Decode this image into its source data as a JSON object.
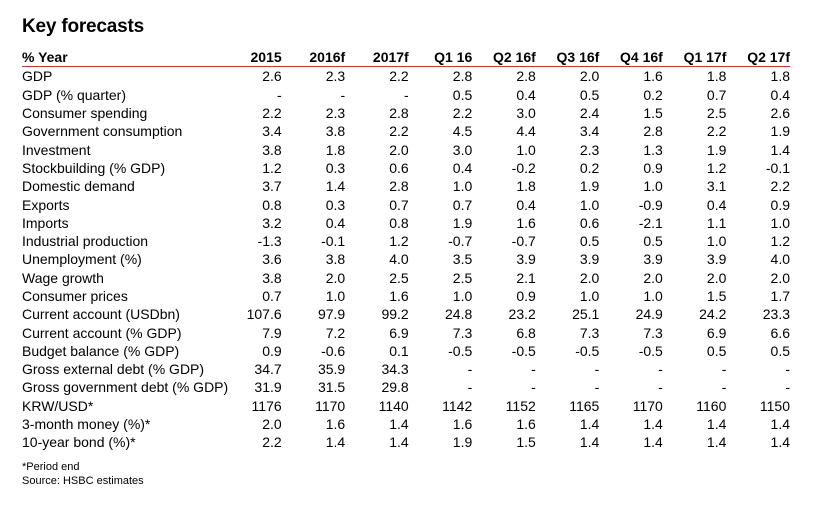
{
  "title": "Key forecasts",
  "header": [
    "% Year",
    "2015",
    "2016f",
    "2017f",
    "Q1 16",
    "Q2 16f",
    "Q3 16f",
    "Q4 16f",
    "Q1 17f",
    "Q2 17f"
  ],
  "rows": [
    [
      "GDP",
      "2.6",
      "2.3",
      "2.2",
      "2.8",
      "2.8",
      "2.0",
      "1.6",
      "1.8",
      "1.8"
    ],
    [
      "GDP (% quarter)",
      "-",
      "-",
      "-",
      "0.5",
      "0.4",
      "0.5",
      "0.2",
      "0.7",
      "0.4"
    ],
    [
      "Consumer spending",
      "2.2",
      "2.3",
      "2.8",
      "2.2",
      "3.0",
      "2.4",
      "1.5",
      "2.5",
      "2.6"
    ],
    [
      "Government consumption",
      "3.4",
      "3.8",
      "2.2",
      "4.5",
      "4.4",
      "3.4",
      "2.8",
      "2.2",
      "1.9"
    ],
    [
      "Investment",
      "3.8",
      "1.8",
      "2.0",
      "3.0",
      "1.0",
      "2.3",
      "1.3",
      "1.9",
      "1.4"
    ],
    [
      "Stockbuilding (% GDP)",
      "1.2",
      "0.3",
      "0.6",
      "0.4",
      "-0.2",
      "0.2",
      "0.9",
      "1.2",
      "-0.1"
    ],
    [
      "Domestic demand",
      "3.7",
      "1.4",
      "2.8",
      "1.0",
      "1.8",
      "1.9",
      "1.0",
      "3.1",
      "2.2"
    ],
    [
      "Exports",
      "0.8",
      "0.3",
      "0.7",
      "0.7",
      "0.4",
      "1.0",
      "-0.9",
      "0.4",
      "0.9"
    ],
    [
      "Imports",
      "3.2",
      "0.4",
      "0.8",
      "1.9",
      "1.6",
      "0.6",
      "-2.1",
      "1.1",
      "1.0"
    ],
    [
      "Industrial production",
      "-1.3",
      "-0.1",
      "1.2",
      "-0.7",
      "-0.7",
      "0.5",
      "0.5",
      "1.0",
      "1.2"
    ],
    [
      "Unemployment (%)",
      "3.6",
      "3.8",
      "4.0",
      "3.5",
      "3.9",
      "3.9",
      "3.9",
      "3.9",
      "4.0"
    ],
    [
      "Wage growth",
      "3.8",
      "2.0",
      "2.5",
      "2.5",
      "2.1",
      "2.0",
      "2.0",
      "2.0",
      "2.0"
    ],
    [
      "Consumer prices",
      "0.7",
      "1.0",
      "1.6",
      "1.0",
      "0.9",
      "1.0",
      "1.0",
      "1.5",
      "1.7"
    ],
    [
      "Current account (USDbn)",
      "107.6",
      "97.9",
      "99.2",
      "24.8",
      "23.2",
      "25.1",
      "24.9",
      "24.2",
      "23.3"
    ],
    [
      "Current account (% GDP)",
      "7.9",
      "7.2",
      "6.9",
      "7.3",
      "6.8",
      "7.3",
      "7.3",
      "6.9",
      "6.6"
    ],
    [
      "Budget balance (% GDP)",
      "0.9",
      "-0.6",
      "0.1",
      "-0.5",
      "-0.5",
      "-0.5",
      "-0.5",
      "0.5",
      "0.5"
    ],
    [
      "Gross external debt (% GDP)",
      "34.7",
      "35.9",
      "34.3",
      "-",
      "-",
      "-",
      "-",
      "-",
      "-"
    ],
    [
      "Gross government debt (% GDP)",
      "31.9",
      "31.5",
      "29.8",
      "-",
      "-",
      "-",
      "-",
      "-",
      "-"
    ],
    [
      "KRW/USD*",
      "1176",
      "1170",
      "1140",
      "1142",
      "1152",
      "1165",
      "1170",
      "1160",
      "1150"
    ],
    [
      "3-month money (%)*",
      "2.0",
      "1.6",
      "1.4",
      "1.6",
      "1.6",
      "1.4",
      "1.4",
      "1.4",
      "1.4"
    ],
    [
      "10-year bond (%)*",
      "2.2",
      "1.4",
      "1.4",
      "1.9",
      "1.5",
      "1.4",
      "1.4",
      "1.4",
      "1.4"
    ]
  ],
  "footnote": "*Period end",
  "source": "Source: HSBC estimates"
}
